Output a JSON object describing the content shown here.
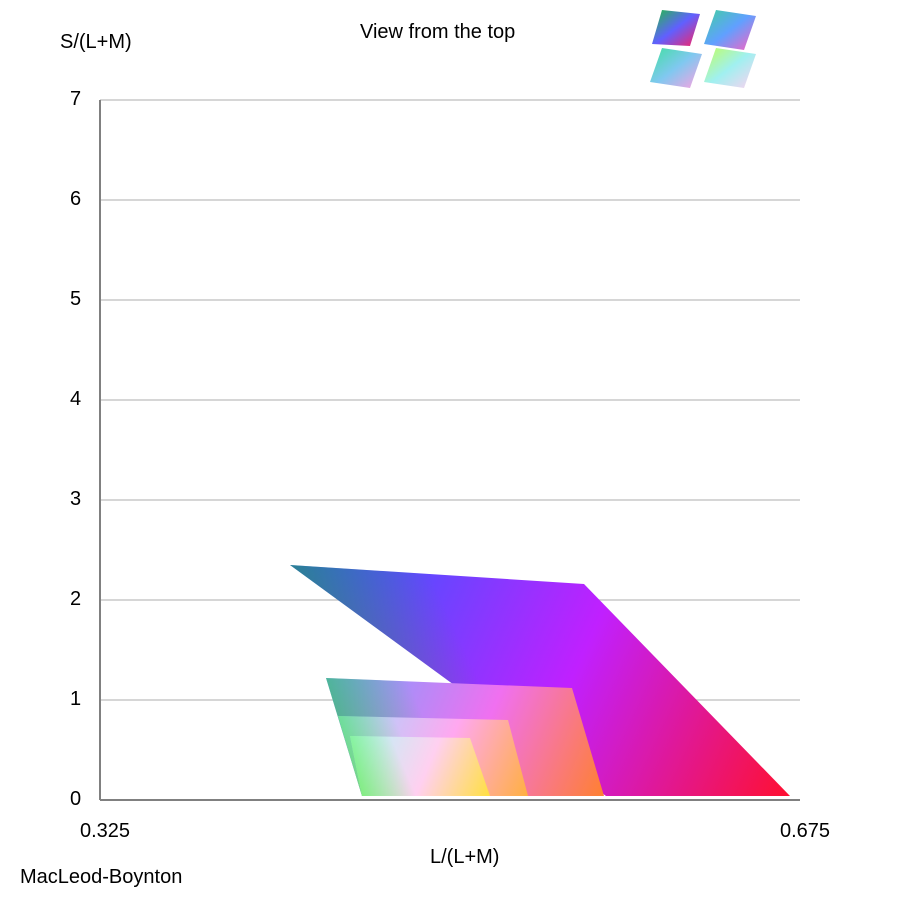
{
  "header": {
    "view_label": "View from the top"
  },
  "footer": {
    "space_label": "MacLeod-Boynton"
  },
  "view_thumbnails": [
    {
      "name": "view-thumb-top-left"
    },
    {
      "name": "view-thumb-top-right"
    },
    {
      "name": "view-thumb-bottom-left"
    },
    {
      "name": "view-thumb-bottom-right"
    }
  ],
  "chart_data": {
    "type": "area",
    "xlabel": "L/(L+M)",
    "ylabel": "S/(L+M)",
    "xlim": [
      0.325,
      0.675
    ],
    "ylim": [
      0,
      7
    ],
    "x_tick_labels": [
      "0.325",
      "0.675"
    ],
    "y_tick_labels": [
      "0",
      "1",
      "2",
      "3",
      "4",
      "5",
      "6",
      "7"
    ],
    "grid": true,
    "regions": [
      {
        "polygon": [
          [
            0.42,
            2.35
          ],
          [
            0.567,
            2.16
          ],
          [
            0.67,
            0.04
          ],
          [
            0.578,
            0.04
          ]
        ],
        "gradient_colors": [
          "#1e64ff",
          "#c020ff",
          "#ff1030",
          "#3aa020"
        ]
      },
      {
        "polygon": [
          [
            0.438,
            1.22
          ],
          [
            0.561,
            1.12
          ],
          [
            0.577,
            0.04
          ],
          [
            0.456,
            0.04
          ]
        ],
        "gradient_colors": [
          "#70a8ff",
          "#f070f0",
          "#ff8030",
          "#30c040"
        ]
      },
      {
        "polygon": [
          [
            0.444,
            0.84
          ],
          [
            0.529,
            0.8
          ],
          [
            0.539,
            0.04
          ],
          [
            0.456,
            0.04
          ]
        ],
        "gradient_colors": [
          "#a0dcff",
          "#ffa8f0",
          "#ffb040",
          "#40e040"
        ]
      },
      {
        "polygon": [
          [
            0.45,
            0.64
          ],
          [
            0.51,
            0.62
          ],
          [
            0.52,
            0.04
          ],
          [
            0.456,
            0.04
          ]
        ],
        "gradient_colors": [
          "#b0f8f8",
          "#ffd0f0",
          "#ffe040",
          "#60ee50"
        ]
      }
    ]
  }
}
